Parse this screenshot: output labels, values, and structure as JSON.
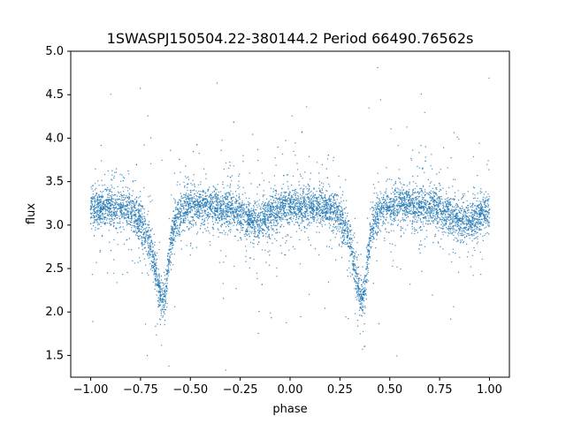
{
  "chart_data": {
    "type": "scatter",
    "title": "1SWASPJ150504.22-380144.2 Period 66490.76562s",
    "xlabel": "phase",
    "ylabel": "flux",
    "xlim": [
      -1.1,
      1.1
    ],
    "ylim": [
      1.25,
      5.0
    ],
    "xticks": [
      -1.0,
      -0.75,
      -0.5,
      -0.25,
      0.0,
      0.25,
      0.5,
      0.75,
      1.0
    ],
    "xtick_labels": [
      "−1.00",
      "−0.75",
      "−0.50",
      "−0.25",
      "0.00",
      "0.25",
      "0.50",
      "0.75",
      "1.00"
    ],
    "yticks": [
      1.5,
      2.0,
      2.5,
      3.0,
      3.5,
      4.0,
      4.5,
      5.0
    ],
    "ytick_labels": [
      "1.5",
      "2.0",
      "2.5",
      "3.0",
      "3.5",
      "4.0",
      "4.5",
      "5.0"
    ],
    "grid": false,
    "marker_color": "#1f77b4",
    "series": [
      {
        "x": [
          -1.0,
          -0.95,
          -0.9,
          -0.85,
          -0.8,
          -0.75,
          -0.7,
          -0.68,
          -0.66,
          -0.65,
          -0.64,
          -0.63,
          -0.62,
          -0.61,
          -0.6,
          -0.58,
          -0.55,
          -0.5,
          -0.45,
          -0.4,
          -0.35,
          -0.3,
          -0.25,
          -0.2,
          -0.15,
          -0.1,
          -0.05,
          0.0,
          0.05,
          0.1,
          0.15,
          0.2,
          0.25,
          0.3,
          0.32,
          0.34,
          0.35,
          0.36,
          0.37,
          0.38,
          0.39,
          0.4,
          0.42,
          0.45,
          0.5,
          0.55,
          0.6,
          0.65,
          0.7,
          0.75,
          0.8,
          0.85,
          0.9,
          0.95,
          1.0
        ],
        "y": [
          3.18,
          3.2,
          3.22,
          3.2,
          3.15,
          3.05,
          2.75,
          2.55,
          2.3,
          2.2,
          2.15,
          2.18,
          2.3,
          2.55,
          2.8,
          3.0,
          3.15,
          3.2,
          3.22,
          3.22,
          3.2,
          3.18,
          3.12,
          3.05,
          3.05,
          3.12,
          3.18,
          3.2,
          3.2,
          3.2,
          3.2,
          3.18,
          3.12,
          2.85,
          2.55,
          2.3,
          2.2,
          2.15,
          2.2,
          2.35,
          2.6,
          2.85,
          3.05,
          3.15,
          3.2,
          3.22,
          3.22,
          3.2,
          3.2,
          3.18,
          3.12,
          3.05,
          3.05,
          3.12,
          3.18
        ]
      }
    ]
  }
}
